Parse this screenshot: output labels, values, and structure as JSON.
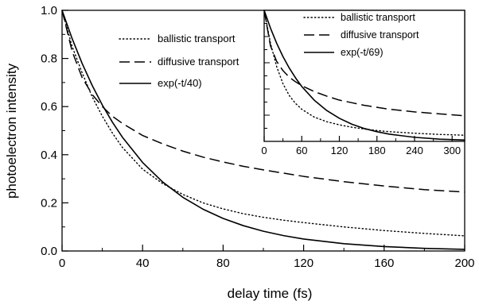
{
  "chart_data": [
    {
      "type": "line",
      "title": "",
      "xlabel": "delay time (fs)",
      "ylabel": "photoelectron intensity",
      "xlim": [
        0,
        200
      ],
      "ylim": [
        0,
        1.0
      ],
      "xticks": [
        "0",
        "40",
        "80",
        "120",
        "160",
        "200"
      ],
      "yticks": [
        "0.0",
        "0.2",
        "0.4",
        "0.6",
        "0.8",
        "1.0"
      ],
      "grid": false,
      "legend_position": "upper-left of plot, left of inset",
      "series": [
        {
          "name": "ballistic transport",
          "style": "dotted",
          "x": [
            0,
            5,
            10,
            15,
            20,
            25,
            30,
            40,
            50,
            60,
            70,
            80,
            90,
            100,
            110,
            120,
            140,
            160,
            180,
            200
          ],
          "y": [
            1.0,
            0.85,
            0.74,
            0.64,
            0.56,
            0.49,
            0.43,
            0.34,
            0.28,
            0.235,
            0.2,
            0.175,
            0.155,
            0.14,
            0.128,
            0.118,
            0.1,
            0.085,
            0.073,
            0.063
          ]
        },
        {
          "name": "diffusive transport",
          "style": "dashed",
          "x": [
            0,
            5,
            10,
            15,
            20,
            25,
            30,
            40,
            50,
            60,
            70,
            80,
            90,
            100,
            120,
            140,
            160,
            180,
            200
          ],
          "y": [
            1.0,
            0.83,
            0.72,
            0.65,
            0.6,
            0.56,
            0.53,
            0.48,
            0.445,
            0.415,
            0.39,
            0.37,
            0.352,
            0.337,
            0.31,
            0.288,
            0.27,
            0.255,
            0.245
          ]
        },
        {
          "name": "exp(-t/40)",
          "style": "solid",
          "x": [
            0,
            5,
            10,
            15,
            20,
            25,
            30,
            40,
            50,
            60,
            70,
            80,
            90,
            100,
            110,
            120,
            140,
            160,
            180,
            200
          ],
          "y": [
            1.0,
            0.8825,
            0.7788,
            0.6873,
            0.6065,
            0.5353,
            0.4724,
            0.3679,
            0.2865,
            0.2231,
            0.1738,
            0.1353,
            0.1054,
            0.0821,
            0.0639,
            0.0498,
            0.0302,
            0.0183,
            0.0111,
            0.0067
          ]
        }
      ]
    },
    {
      "type": "line",
      "title": "",
      "xlabel": "",
      "ylabel": "",
      "xlim": [
        0,
        320
      ],
      "ylim": [
        0,
        1.0
      ],
      "xticks": [
        "0",
        "60",
        "120",
        "180",
        "240",
        "300"
      ],
      "yticks": [],
      "grid": false,
      "legend_position": "top-right of inset",
      "series": [
        {
          "name": "ballistic transport",
          "style": "dotted",
          "x": [
            0,
            10,
            20,
            30,
            40,
            50,
            60,
            80,
            100,
            120,
            140,
            160,
            180,
            200,
            240,
            280,
            320
          ],
          "y": [
            1.0,
            0.75,
            0.57,
            0.44,
            0.35,
            0.29,
            0.245,
            0.185,
            0.15,
            0.126,
            0.108,
            0.094,
            0.083,
            0.074,
            0.062,
            0.053,
            0.047
          ]
        },
        {
          "name": "diffusive transport",
          "style": "dashed",
          "x": [
            0,
            10,
            20,
            30,
            40,
            50,
            60,
            80,
            100,
            120,
            140,
            160,
            180,
            200,
            240,
            280,
            320
          ],
          "y": [
            1.0,
            0.73,
            0.61,
            0.54,
            0.49,
            0.455,
            0.425,
            0.38,
            0.345,
            0.315,
            0.295,
            0.275,
            0.26,
            0.245,
            0.225,
            0.21,
            0.195
          ]
        },
        {
          "name": "exp(-t/69)",
          "style": "solid",
          "x": [
            0,
            10,
            20,
            30,
            40,
            50,
            60,
            80,
            100,
            120,
            140,
            160,
            180,
            200,
            240,
            280,
            320
          ],
          "y": [
            1.0,
            0.865,
            0.748,
            0.647,
            0.56,
            0.485,
            0.419,
            0.314,
            0.235,
            0.176,
            0.131,
            0.098,
            0.074,
            0.055,
            0.031,
            0.017,
            0.01
          ]
        }
      ]
    }
  ]
}
